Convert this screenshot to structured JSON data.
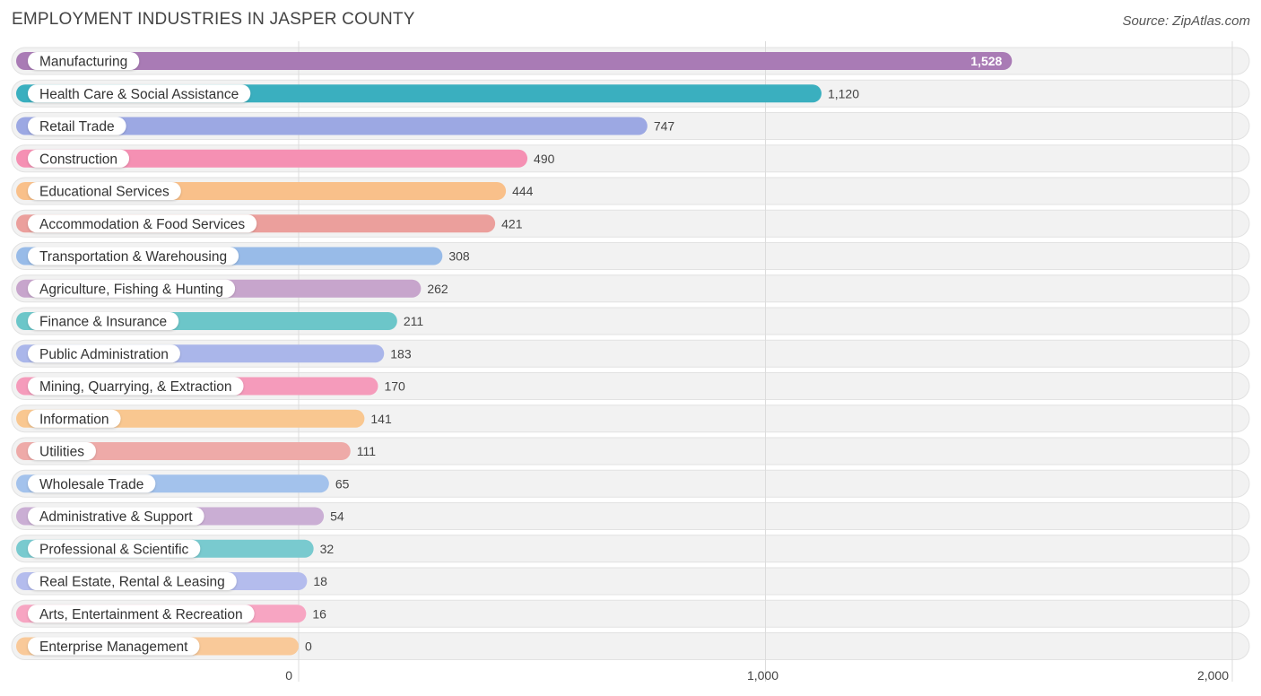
{
  "title": "EMPLOYMENT INDUSTRIES IN JASPER COUNTY",
  "source": "Source: ZipAtlas.com",
  "chart_data": {
    "type": "bar",
    "orientation": "horizontal",
    "title": "EMPLOYMENT INDUSTRIES IN JASPER COUNTY",
    "xlabel": "",
    "ylabel": "",
    "xlim": [
      0,
      2000
    ],
    "x_ticks": [
      0,
      1000,
      2000
    ],
    "x_tick_labels": [
      "0",
      "1,000",
      "2,000"
    ],
    "grid": true,
    "categories": [
      "Manufacturing",
      "Health Care & Social Assistance",
      "Retail Trade",
      "Construction",
      "Educational Services",
      "Accommodation & Food Services",
      "Transportation & Warehousing",
      "Agriculture, Fishing & Hunting",
      "Finance & Insurance",
      "Public Administration",
      "Mining, Quarrying, & Extraction",
      "Information",
      "Utilities",
      "Wholesale Trade",
      "Administrative & Support",
      "Professional & Scientific",
      "Real Estate, Rental & Leasing",
      "Arts, Entertainment & Recreation",
      "Enterprise Management"
    ],
    "values": [
      1528,
      1120,
      747,
      490,
      444,
      421,
      308,
      262,
      211,
      183,
      170,
      141,
      111,
      65,
      54,
      32,
      18,
      16,
      0
    ],
    "value_labels": [
      "1,528",
      "1,120",
      "747",
      "490",
      "444",
      "421",
      "308",
      "262",
      "211",
      "183",
      "170",
      "141",
      "111",
      "65",
      "54",
      "32",
      "18",
      "16",
      "0"
    ],
    "colors": [
      "#a97bb5",
      "#3aafbf",
      "#9ca8e3",
      "#f590b3",
      "#f9c08a",
      "#eb9f9c",
      "#98bbe8",
      "#c7a5cc",
      "#6cc6c9",
      "#aab6ea",
      "#f59bbb",
      "#f9c790",
      "#eeaaa8",
      "#a3c2ec",
      "#caaed4",
      "#79cacf",
      "#b4bced",
      "#f7a5c2",
      "#f9c999"
    ]
  }
}
